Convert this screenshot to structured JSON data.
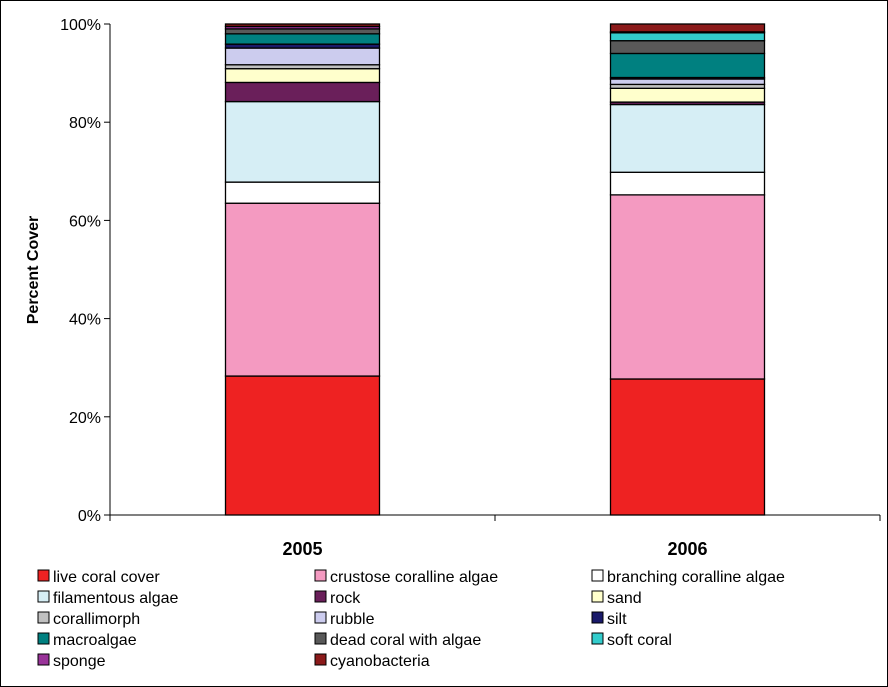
{
  "chart_data": {
    "type": "bar",
    "stacked": true,
    "categories": [
      "2005",
      "2006"
    ],
    "ylabel": "Percent Cover",
    "xlabel": "",
    "title": "",
    "ylim": [
      0,
      100
    ],
    "yticks": [
      0,
      20,
      40,
      60,
      80,
      100
    ],
    "ytick_labels": [
      "0%",
      "20%",
      "40%",
      "60%",
      "80%",
      "100%"
    ],
    "grid": false,
    "legend_position": "bottom",
    "series": [
      {
        "name": "live coral cover",
        "color": "#ee2222",
        "values": [
          28.3,
          27.7
        ]
      },
      {
        "name": "crustose coralline algae",
        "color": "#f49ac1",
        "values": [
          35.2,
          37.5
        ]
      },
      {
        "name": "branching coralline algae",
        "color": "#ffffff",
        "values": [
          4.3,
          4.6
        ]
      },
      {
        "name": "filamentous algae",
        "color": "#d6eef5",
        "values": [
          16.4,
          13.8
        ]
      },
      {
        "name": "rock",
        "color": "#6a1f5a",
        "values": [
          3.9,
          0.5
        ]
      },
      {
        "name": "sand",
        "color": "#ffffcc",
        "values": [
          2.8,
          2.8
        ]
      },
      {
        "name": "corallimorph",
        "color": "#c0c0c0",
        "values": [
          0.8,
          0.8
        ]
      },
      {
        "name": "rubble",
        "color": "#ccccee",
        "values": [
          3.4,
          1.1
        ]
      },
      {
        "name": "silt",
        "color": "#1a1a6a",
        "values": [
          0.8,
          0.3
        ]
      },
      {
        "name": "macroalgae",
        "color": "#008080",
        "values": [
          2.1,
          4.9
        ]
      },
      {
        "name": "dead coral with algae",
        "color": "#595959",
        "values": [
          1.0,
          2.6
        ]
      },
      {
        "name": "soft coral",
        "color": "#33cccc",
        "values": [
          0.0,
          1.6
        ]
      },
      {
        "name": "sponge",
        "color": "#993399",
        "values": [
          0.5,
          0.2
        ]
      },
      {
        "name": "cyanobacteria",
        "color": "#8b1a1a",
        "values": [
          0.5,
          1.6
        ]
      }
    ]
  }
}
